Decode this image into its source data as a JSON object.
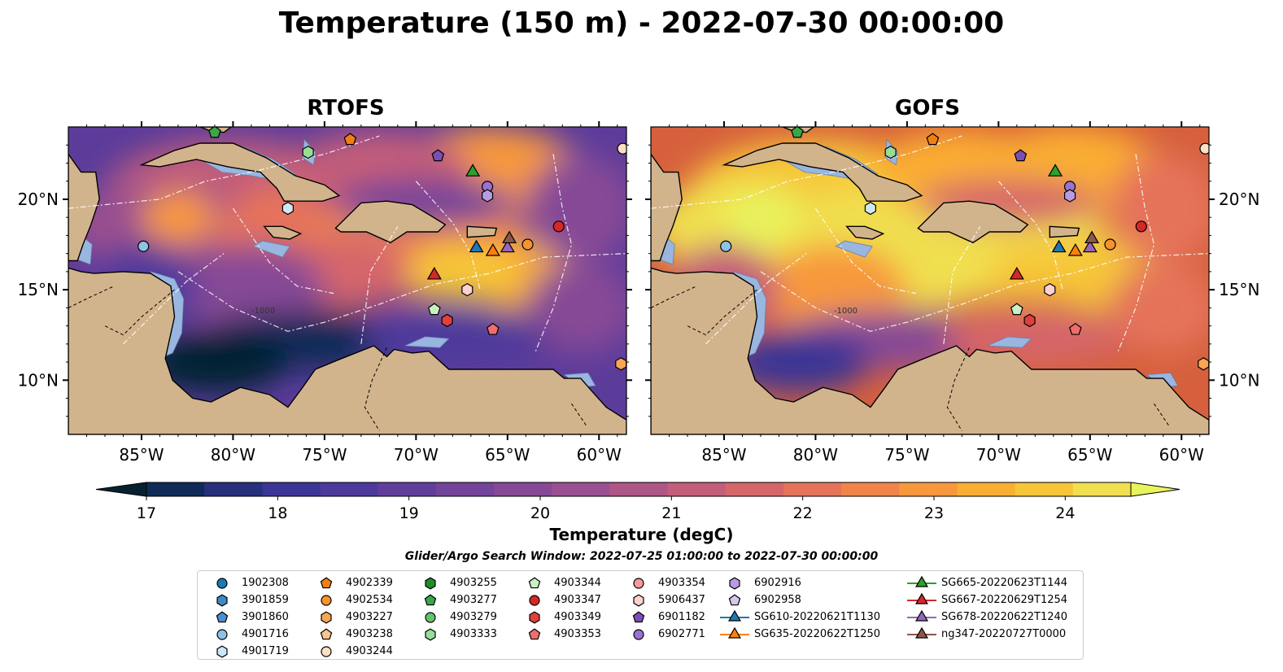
{
  "title": "Temperature (150 m) - 2022-07-30 00:00:00",
  "panels": [
    {
      "name": "RTOFS"
    },
    {
      "name": "GOFS"
    }
  ],
  "map": {
    "lon_range": [
      -89,
      -58.5
    ],
    "lat_range": [
      7,
      24
    ],
    "lon_ticks": [
      "85°W",
      "80°W",
      "75°W",
      "70°W",
      "65°W",
      "60°W"
    ],
    "lat_ticks": [
      "20°N",
      "15°N",
      "10°N"
    ],
    "land_color": "#d2b48c",
    "shelf_color": "#98b6e0",
    "isobath_label": "-1000"
  },
  "colorbar": {
    "label": "Temperature (degC)",
    "min": 17,
    "max": 24.5,
    "step": 0.5,
    "ticks": [
      "17",
      "18",
      "19",
      "20",
      "21",
      "22",
      "23",
      "24"
    ],
    "colors": [
      "#062231",
      "#0f2b57",
      "#27307d",
      "#3b3595",
      "#4e3a9b",
      "#613e9c",
      "#73449a",
      "#864996",
      "#9a4f90",
      "#ae5686",
      "#c35d79",
      "#d5666a",
      "#e5735a",
      "#f0844a",
      "#f7983c",
      "#faae32",
      "#f6c638",
      "#f0df4f",
      "#e8f35d"
    ]
  },
  "search_window": "Glider/Argo Search Window: 2022-07-25 01:00:00 to 2022-07-30 00:00:00",
  "platforms": [
    {
      "id": "1902308",
      "marker": "circle",
      "color": "#1f77b4",
      "lon": null,
      "lat": null
    },
    {
      "id": "3901859",
      "marker": "hexagon",
      "color": "#3f88c5",
      "lon": null,
      "lat": null
    },
    {
      "id": "3901860",
      "marker": "pentagon",
      "color": "#4a90d0",
      "lon": null,
      "lat": null
    },
    {
      "id": "4901716",
      "marker": "circle",
      "color": "#8ec1e6",
      "lon": -84.9,
      "lat": 17.4
    },
    {
      "id": "4901719",
      "marker": "hexagon",
      "color": "#cfe6f7",
      "lon": -77,
      "lat": 19.5
    },
    {
      "id": "4902339",
      "marker": "pentagon",
      "color": "#f07f12",
      "lon": -73.6,
      "lat": 23.3
    },
    {
      "id": "4902534",
      "marker": "circle",
      "color": "#f7922e",
      "lon": -63.9,
      "lat": 17.5
    },
    {
      "id": "4903227",
      "marker": "hexagon",
      "color": "#f9a553",
      "lon": -58.8,
      "lat": 10.9
    },
    {
      "id": "4903238",
      "marker": "pentagon",
      "color": "#fcc48e",
      "lon": null,
      "lat": null
    },
    {
      "id": "4903244",
      "marker": "circle",
      "color": "#fde0c3",
      "lon": -58.7,
      "lat": 22.8
    },
    {
      "id": "4903255",
      "marker": "hexagon",
      "color": "#1f8a2e",
      "lon": null,
      "lat": null
    },
    {
      "id": "4903277",
      "marker": "pentagon",
      "color": "#3aa64a",
      "lon": -81,
      "lat": 23.7
    },
    {
      "id": "4903279",
      "marker": "circle",
      "color": "#66c26b",
      "lon": null,
      "lat": null
    },
    {
      "id": "4903333",
      "marker": "hexagon",
      "color": "#98dc95",
      "lon": -75.9,
      "lat": 22.6
    },
    {
      "id": "4903344",
      "marker": "pentagon",
      "color": "#c9efc3",
      "lon": -69,
      "lat": 13.9
    },
    {
      "id": "4903347",
      "marker": "circle",
      "color": "#d62728",
      "lon": -62.2,
      "lat": 18.5
    },
    {
      "id": "4903349",
      "marker": "hexagon",
      "color": "#e0403c",
      "lon": -68.3,
      "lat": 13.3
    },
    {
      "id": "4903353",
      "marker": "pentagon",
      "color": "#f16d6b",
      "lon": -65.8,
      "lat": 12.8
    },
    {
      "id": "4903354",
      "marker": "circle",
      "color": "#f79a9a",
      "lon": null,
      "lat": null
    },
    {
      "id": "5906437",
      "marker": "hexagon",
      "color": "#fcd1cf",
      "lon": -67.2,
      "lat": 15
    },
    {
      "id": "6901182",
      "marker": "pentagon",
      "color": "#7a4fb5",
      "lon": -68.8,
      "lat": 22.4
    },
    {
      "id": "6902771",
      "marker": "circle",
      "color": "#9a72cf",
      "lon": -66.1,
      "lat": 20.7
    },
    {
      "id": "6902916",
      "marker": "hexagon",
      "color": "#b99be0",
      "lon": -66.1,
      "lat": 20.2
    },
    {
      "id": "6902958",
      "marker": "pentagon",
      "color": "#d8c6ee",
      "lon": null,
      "lat": null
    },
    {
      "id": "SG610-20220621T1130",
      "marker": "triangle",
      "color": "#1f77b4",
      "line": true,
      "lon": -66.7,
      "lat": 17.3
    },
    {
      "id": "SG635-20220622T1250",
      "marker": "triangle",
      "color": "#ff7f0e",
      "line": true,
      "lon": -65.8,
      "lat": 17.1
    },
    {
      "id": "SG665-20220623T1144",
      "marker": "triangle",
      "color": "#2ca02c",
      "line": true,
      "lon": -66.9,
      "lat": 21.5
    },
    {
      "id": "SG667-20220629T1254",
      "marker": "triangle",
      "color": "#d62728",
      "line": true,
      "lon": -69,
      "lat": 15.8
    },
    {
      "id": "SG678-20220622T1240",
      "marker": "triangle",
      "color": "#9467bd",
      "line": true,
      "lon": -65,
      "lat": 17.3
    },
    {
      "id": "ng347-20220727T0000",
      "marker": "triangle",
      "color": "#8c564b",
      "line": true,
      "lon": -64.9,
      "lat": 17.8
    }
  ],
  "legend_columns": [
    [
      "1902308",
      "3901859",
      "3901860",
      "4901716",
      "4901719"
    ],
    [
      "4902339",
      "4902534",
      "4903227",
      "4903238",
      "4903244"
    ],
    [
      "4903255",
      "4903277",
      "4903279",
      "4903333"
    ],
    [
      "4903344",
      "4903347",
      "4903349",
      "4903353"
    ],
    [
      "4903354",
      "5906437",
      "6901182",
      "6902771"
    ],
    [
      "6902916",
      "6902958",
      "SG610-20220621T1130",
      "SG635-20220622T1250"
    ],
    [
      "SG665-20220623T1144",
      "SG667-20220629T1254",
      "SG678-20220622T1240",
      "ng347-20220727T0000"
    ]
  ]
}
